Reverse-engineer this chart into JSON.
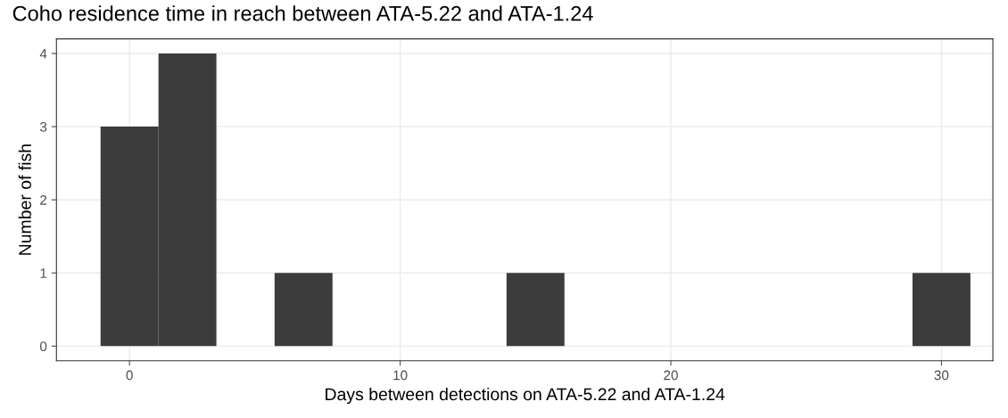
{
  "chart_data": {
    "type": "histogram",
    "title": "Coho residence time in reach between ATA-5.22 and ATA-1.24",
    "xlabel": "Days between detections on ATA-5.22 and ATA-1.24",
    "ylabel": "Number of fish",
    "bins": [
      -1.07,
      1.07,
      3.21,
      5.36,
      7.5,
      9.64,
      11.79,
      13.93,
      16.07,
      18.21,
      20.36,
      22.5,
      24.64,
      26.79,
      28.93,
      31.07
    ],
    "values": [
      3,
      4,
      0,
      1,
      0,
      0,
      0,
      1,
      0,
      0,
      0,
      0,
      0,
      0,
      1
    ],
    "color": "#3c3c3c",
    "xlim": [
      -2.7,
      31.9
    ],
    "xticks": [
      0,
      10,
      20,
      30
    ],
    "ylim": [
      -0.2,
      4.2
    ],
    "yticks": [
      0,
      1,
      2,
      3,
      4
    ],
    "grid": true
  }
}
